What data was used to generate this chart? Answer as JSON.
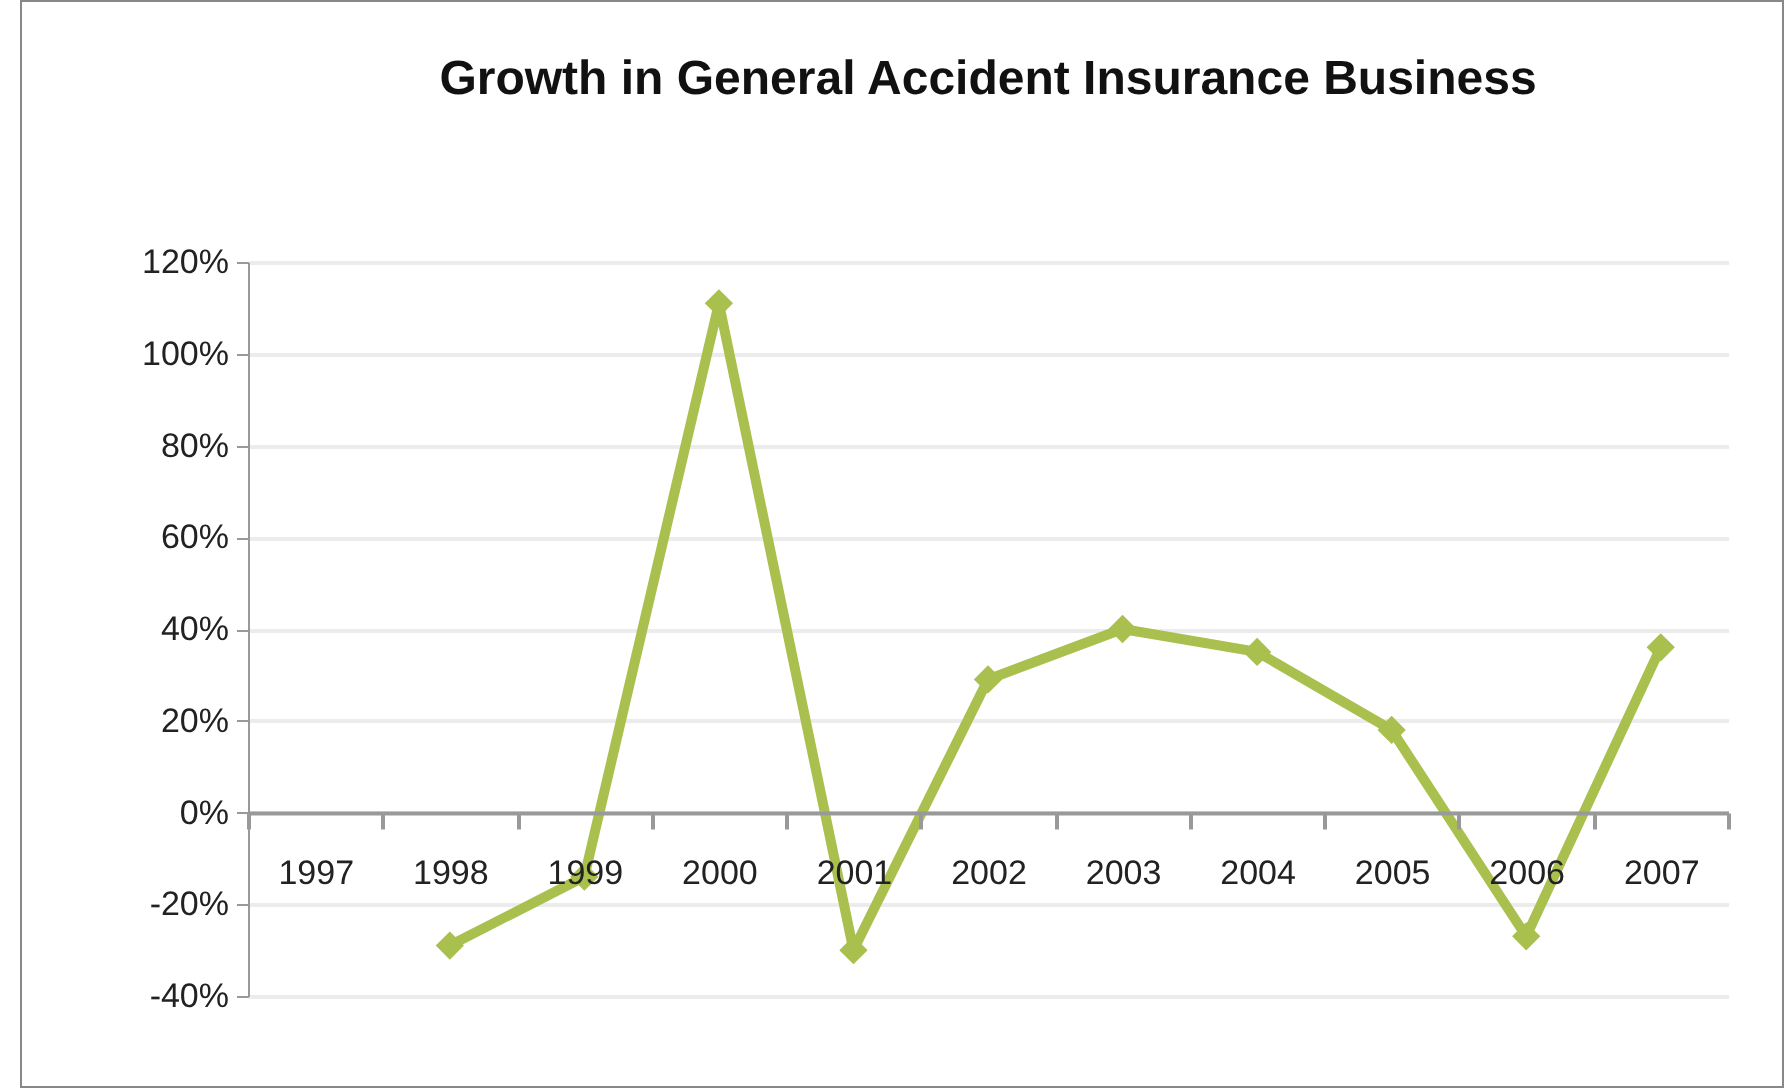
{
  "chart_data": {
    "type": "line",
    "title": "Growth in General  Accident Insurance Business",
    "categories": [
      "1997",
      "1998",
      "1999",
      "2000",
      "2001",
      "2002",
      "2003",
      "2004",
      "2005",
      "2006",
      "2007"
    ],
    "series": [
      {
        "color": "#a9c04f",
        "values": [
          null,
          -29,
          -14,
          111,
          -30,
          29,
          40,
          35,
          18,
          -27,
          36
        ]
      }
    ],
    "ylim": [
      -40,
      120
    ],
    "yticks": [
      {
        "value": -40,
        "label": "-40%"
      },
      {
        "value": -20,
        "label": "-20%"
      },
      {
        "value": 0,
        "label": "0%"
      },
      {
        "value": 20,
        "label": "20%"
      },
      {
        "value": 40,
        "label": "40%"
      },
      {
        "value": 60,
        "label": "60%"
      },
      {
        "value": 80,
        "label": "80%"
      },
      {
        "value": 100,
        "label": "100%"
      },
      {
        "value": 120,
        "label": "120%"
      }
    ],
    "grid": "y",
    "marker": "diamond",
    "line_style": "solid"
  }
}
